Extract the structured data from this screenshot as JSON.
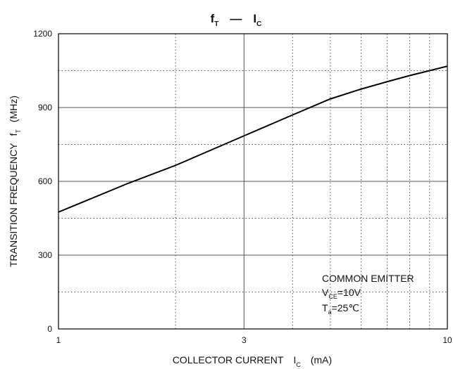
{
  "chart_data": {
    "type": "line",
    "title": {
      "main": "f",
      "main_sub": "T",
      "dash": "—",
      "vs": "I",
      "vs_sub": "C"
    },
    "xlabel": {
      "text": "COLLECTOR CURRENT",
      "symbol": "I",
      "symbol_sub": "C",
      "unit": "(mA)"
    },
    "ylabel": {
      "text": "TRANSITION FREQUENCY",
      "symbol": "f",
      "symbol_sub": "T",
      "unit": "(MHz)"
    },
    "x_scale": "log",
    "xlim": [
      1,
      10
    ],
    "ylim": [
      0,
      1200
    ],
    "x_ticks": [
      1,
      3,
      10
    ],
    "x_tick_labels": [
      "1",
      "3",
      "10"
    ],
    "x_minor_grid": [
      2,
      4,
      5,
      6,
      7,
      8,
      9
    ],
    "y_ticks": [
      0,
      300,
      600,
      900,
      1200
    ],
    "y_tick_labels": [
      "0",
      "300",
      "600",
      "900",
      "1200"
    ],
    "y_minor_grid": [
      150,
      450,
      750,
      1050
    ],
    "grid": true,
    "series": [
      {
        "x": [
          1,
          1.5,
          2,
          3,
          4,
          5,
          6,
          7,
          8,
          9,
          10
        ],
        "y": [
          475,
          590,
          665,
          785,
          870,
          935,
          975,
          1005,
          1030,
          1050,
          1068
        ]
      }
    ],
    "annotation": {
      "line1": "COMMON EMITTER",
      "line2_symbol": "V",
      "line2_sub": "CE",
      "line2_value": "=10V",
      "line3_symbol": "T",
      "line3_sub": "a",
      "line3_value": "=25℃"
    },
    "colors": {
      "line": "#000000",
      "grid": "#555555",
      "frame": "#000000"
    }
  }
}
